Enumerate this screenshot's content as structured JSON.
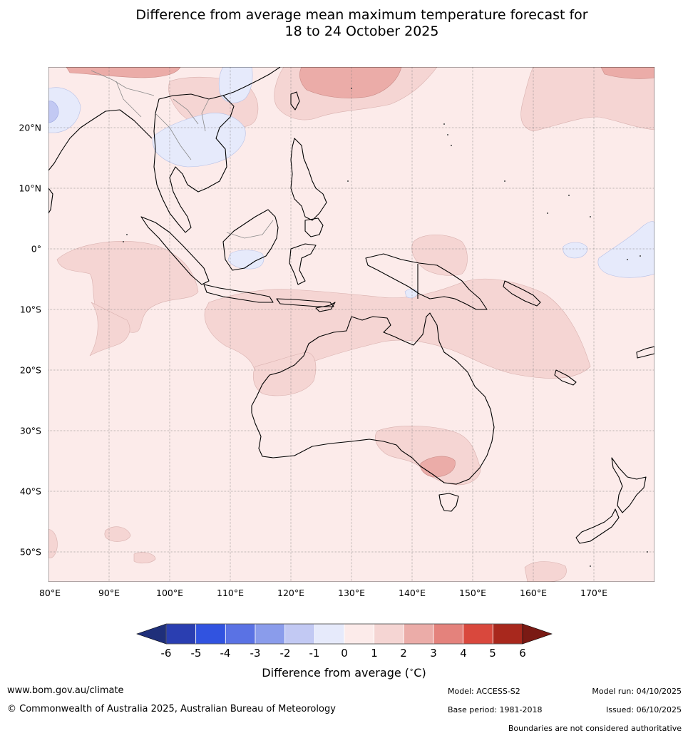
{
  "title": {
    "line1": "Difference from average mean maximum temperature forecast for",
    "line2": "18 to 24 October 2025"
  },
  "map": {
    "lat_labels": [
      "20°N",
      "10°N",
      "0°",
      "10°S",
      "20°S",
      "30°S",
      "40°S",
      "50°S"
    ],
    "lat_values": [
      20,
      10,
      0,
      -10,
      -20,
      -30,
      -40,
      -50
    ],
    "lon_labels": [
      "80°E",
      "90°E",
      "100°E",
      "110°E",
      "120°E",
      "130°E",
      "140°E",
      "150°E",
      "160°E",
      "170°E"
    ],
    "lon_values": [
      80,
      90,
      100,
      110,
      120,
      130,
      140,
      150,
      160,
      170
    ],
    "extent": {
      "lon_min": 80,
      "lon_max": 180,
      "lat_min": -55,
      "lat_max": 30
    }
  },
  "colorbar": {
    "ticks": [
      "-6",
      "-5",
      "-4",
      "-3",
      "-2",
      "-1",
      "0",
      "1",
      "2",
      "3",
      "4",
      "5",
      "6"
    ],
    "colors": [
      "#1f2f7a",
      "#2a3eb1",
      "#3153e0",
      "#5a72e4",
      "#8a9ceb",
      "#c2c9f3",
      "#e6eafb",
      "#fcebea",
      "#f5d5d3",
      "#ebaca8",
      "#e4827c",
      "#d9483d",
      "#a8281d",
      "#7a1a14"
    ],
    "label": "Difference from average (",
    "unit_sup": "∘",
    "unit": "C)"
  },
  "footer": {
    "website": "www.bom.gov.au/climate",
    "copyright": "© Commonwealth of Australia 2025, Australian Bureau of Meteorology",
    "model": "Model: ACCESS-S2",
    "base_period": "Base period: 1981-2018",
    "model_run": "Model run: 04/10/2025",
    "issued": "Issued: 06/10/2025",
    "disclaimer": "Boundaries are not considered authoritative"
  }
}
